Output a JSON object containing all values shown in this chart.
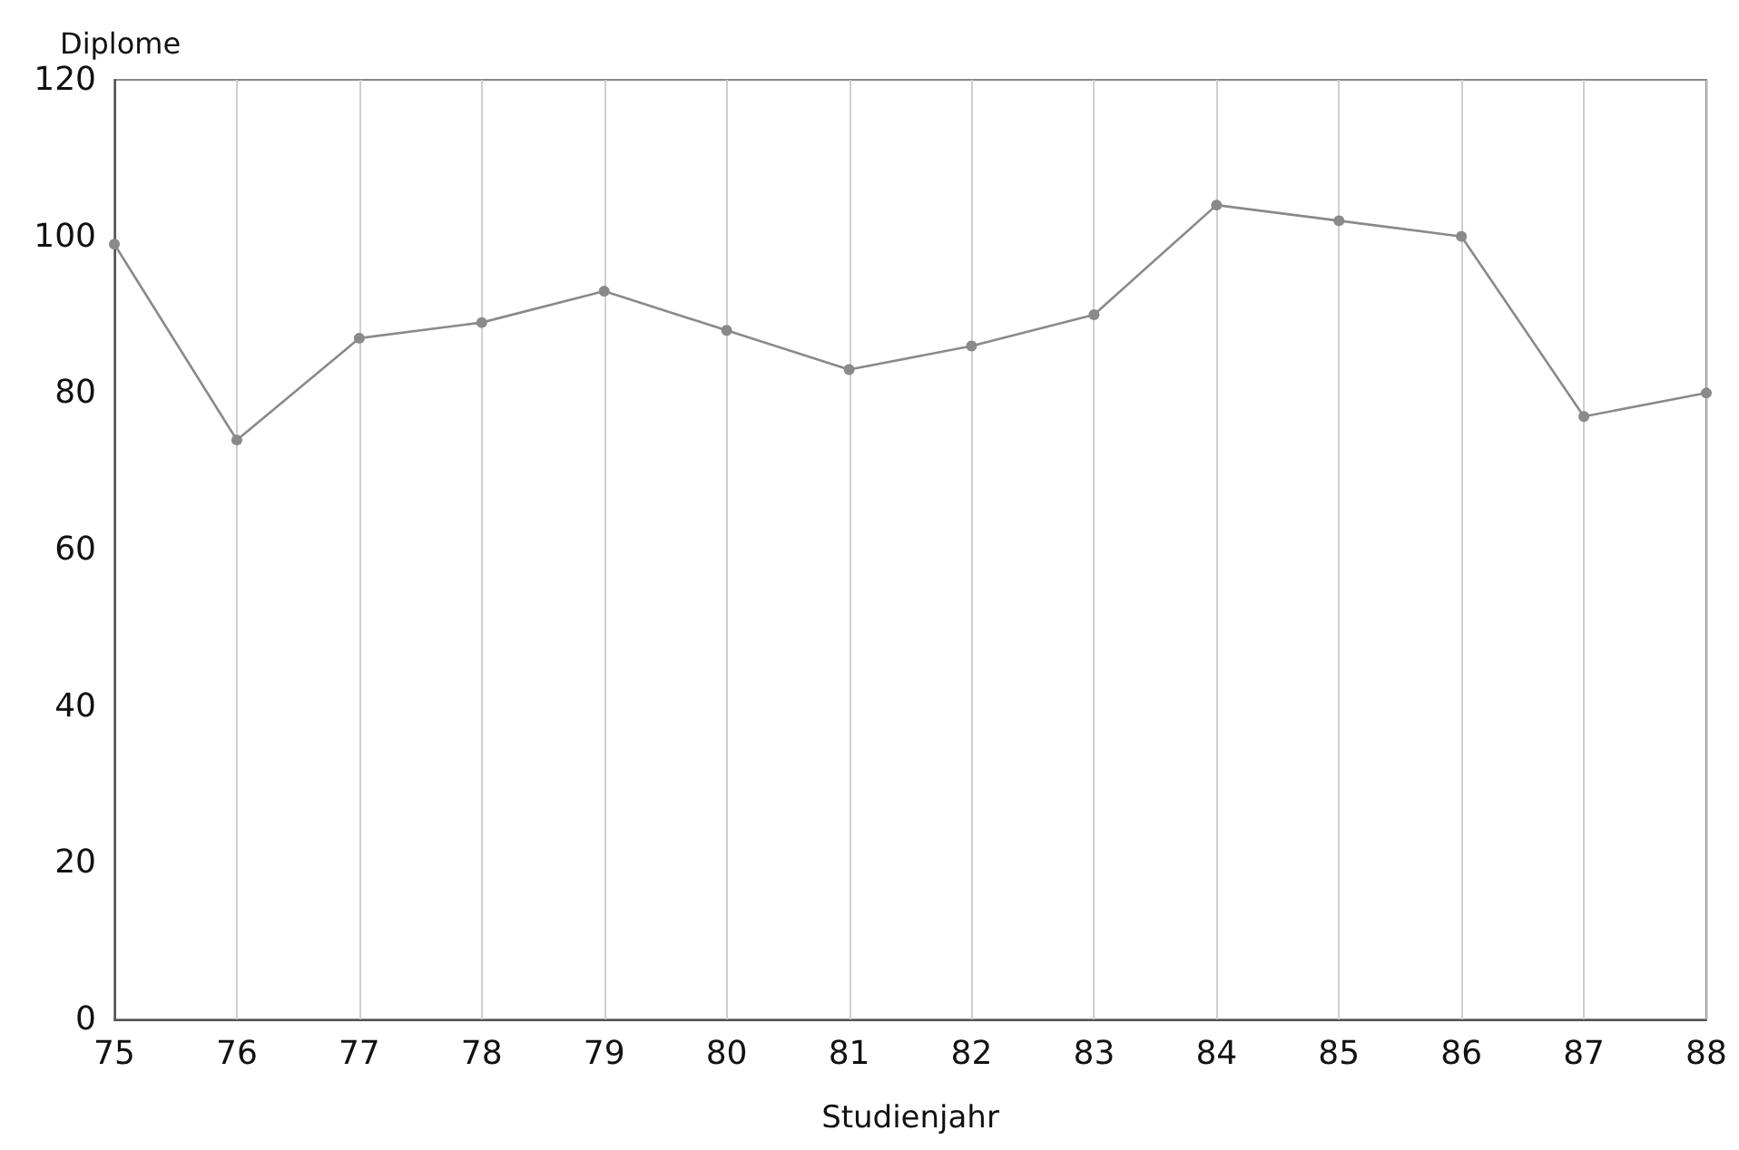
{
  "chart_data": {
    "type": "line",
    "xlabel": "Studienjahr",
    "ylabel": "Diplome",
    "x": [
      75,
      76,
      77,
      78,
      79,
      80,
      81,
      82,
      83,
      84,
      85,
      86,
      87,
      88
    ],
    "series": [
      {
        "color": "#8a8a8a",
        "values": [
          99,
          74,
          87,
          89,
          93,
          88,
          83,
          86,
          90,
          104,
          102,
          100,
          77,
          80
        ]
      }
    ],
    "xlim": [
      75,
      88
    ],
    "xticks": [
      75,
      76,
      77,
      78,
      79,
      80,
      81,
      82,
      83,
      84,
      85,
      86,
      87,
      88
    ],
    "ylim": [
      0,
      120
    ],
    "yticks": [
      0,
      20,
      40,
      60,
      80,
      100,
      120
    ],
    "grid": "x",
    "marker": "circle",
    "line_style": "solid"
  }
}
